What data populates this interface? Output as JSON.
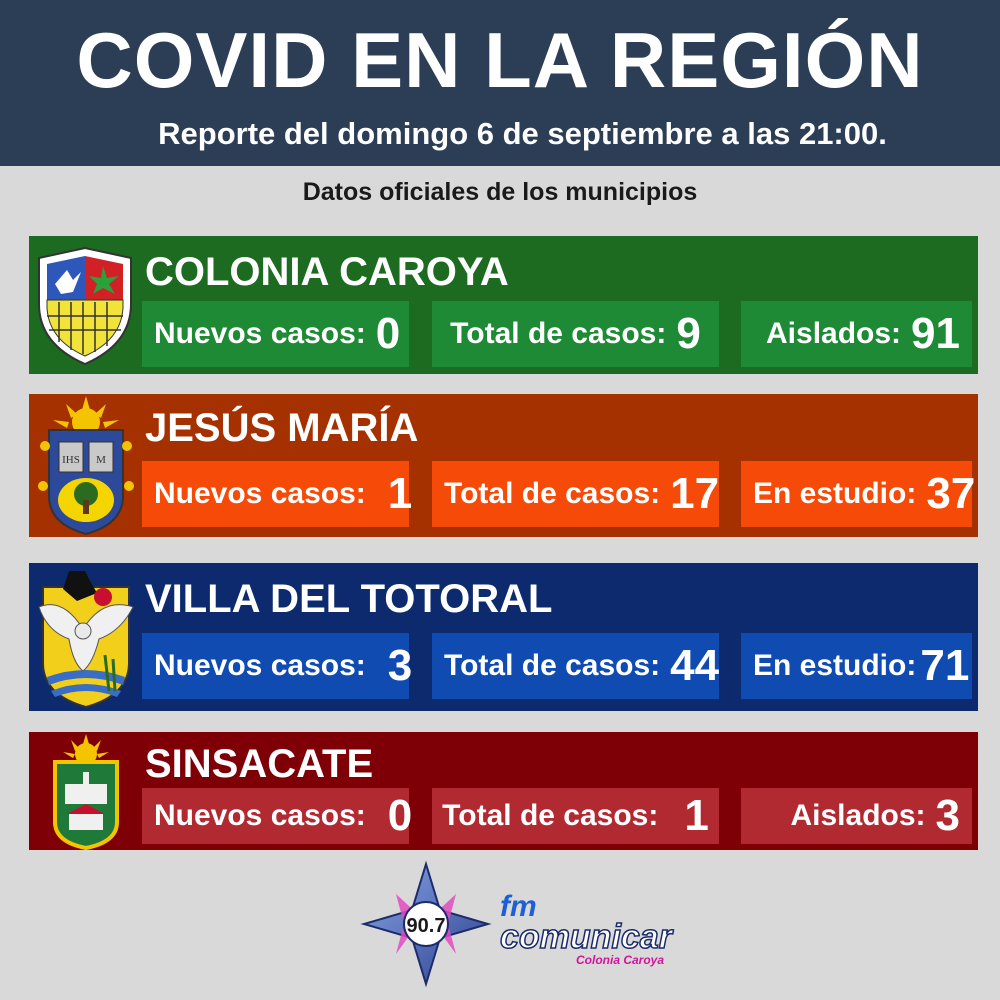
{
  "header": {
    "title": "COVID EN LA REGIÓN",
    "subtitle": "Reporte del domingo 6 de septiembre a las 21:00."
  },
  "section_title": "Datos oficiales de los municipios",
  "municipios": [
    {
      "name": "COLONIA CAROYA",
      "stats": [
        {
          "label": "Nuevos casos:",
          "value": "0"
        },
        {
          "label": "Total de casos:",
          "value": "9"
        },
        {
          "label": "Aislados:",
          "value": "91"
        }
      ]
    },
    {
      "name": "JESÚS MARÍA",
      "stats": [
        {
          "label": "Nuevos casos:",
          "value": "1"
        },
        {
          "label": "Total de casos:",
          "value": "17"
        },
        {
          "label": "En estudio:",
          "value": "37"
        }
      ]
    },
    {
      "name": "VILLA DEL TOTORAL",
      "stats": [
        {
          "label": "Nuevos casos:",
          "value": "3"
        },
        {
          "label": "Total de casos:",
          "value": "44"
        },
        {
          "label": "En estudio:",
          "value": "71"
        }
      ]
    },
    {
      "name": "SINSACATE",
      "stats": [
        {
          "label": "Nuevos casos:",
          "value": "0"
        },
        {
          "label": "Total de casos:",
          "value": "1"
        },
        {
          "label": "Aislados:",
          "value": "3"
        }
      ]
    }
  ],
  "logo": {
    "frequency": "90.7",
    "brand_prefix": "fm",
    "brand_name": "comunicar",
    "brand_city": "Colonia Caroya"
  },
  "colors": {
    "header_bg": "#2c3e56",
    "page_bg": "#d9d9d9",
    "colonia_caroya": "#1d6a21",
    "jesus_maria": "#a53000",
    "villa_del_totoral": "#0e2a6f",
    "sinsacate": "#7e0006"
  }
}
